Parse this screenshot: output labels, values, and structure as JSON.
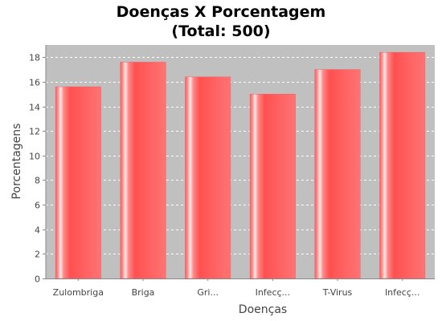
{
  "chart_data": {
    "type": "bar",
    "title": "Doenças X Porcentagem",
    "subtitle": "(Total: 500)",
    "xlabel": "Doenças",
    "ylabel": "Porcentagens",
    "categories": [
      "Zulombriga",
      "Briga",
      "Gri...",
      "Infecç...",
      "T-Virus",
      "Infecç..."
    ],
    "values": [
      15.6,
      17.6,
      16.4,
      15.0,
      17.0,
      18.4
    ],
    "ylim": [
      0,
      19
    ],
    "yticks": [
      "0",
      "2",
      "4",
      "6",
      "8",
      "10",
      "12",
      "14",
      "16",
      "18"
    ],
    "grid": true,
    "legend": "none"
  },
  "colors": {
    "plot_background": "#c0c0c0",
    "bar_base": "#ff5555",
    "bar_highlight": "#ffe6e6",
    "grid": "#ffffff"
  }
}
